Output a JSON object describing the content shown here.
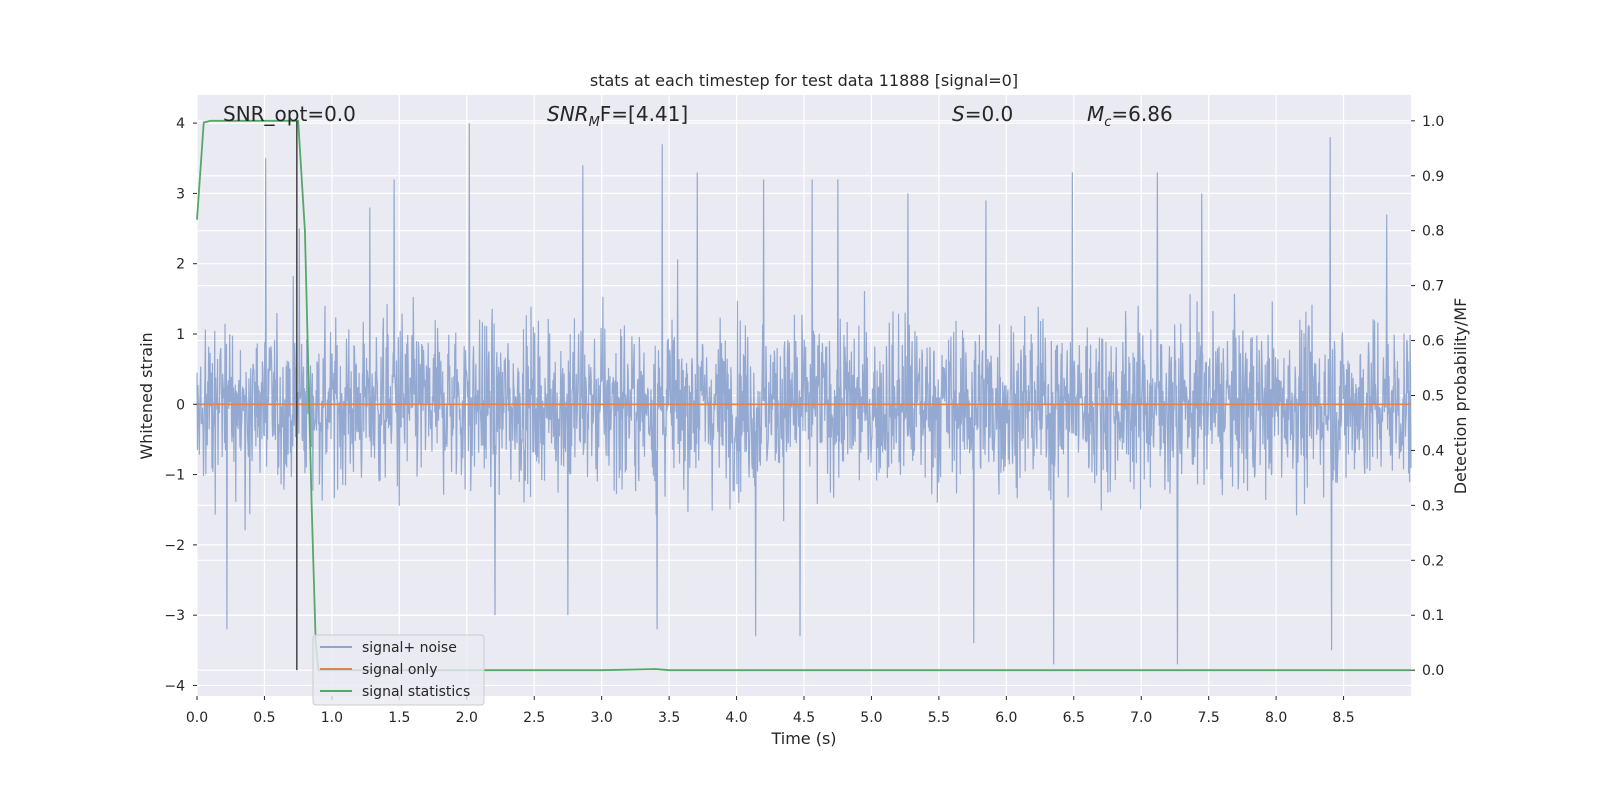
{
  "chart_data": {
    "type": "line",
    "title": "stats at each timestep for test data 11888 [signal=0]",
    "xlabel": "Time (s)",
    "ylabel": "Whitened strain",
    "y2label": "Detection probability/MF",
    "xlim": [
      0.0,
      9.0
    ],
    "ylim": [
      -4.15,
      4.4
    ],
    "y2lim": [
      -0.047,
      1.047
    ],
    "xticks": [
      "0.0",
      "0.5",
      "1.0",
      "1.5",
      "2.0",
      "2.5",
      "3.0",
      "3.5",
      "4.0",
      "4.5",
      "5.0",
      "5.5",
      "6.0",
      "6.5",
      "7.0",
      "7.5",
      "8.0",
      "8.5"
    ],
    "yticks": [
      "4",
      "3",
      "2",
      "1",
      "0",
      "−1",
      "−2",
      "−3",
      "−4"
    ],
    "y2ticks": [
      "1.0",
      "0.9",
      "0.8",
      "0.7",
      "0.6",
      "0.5",
      "0.4",
      "0.3",
      "0.2",
      "0.1",
      "0.0"
    ],
    "grid": true,
    "legend_position": "lower-left",
    "series": [
      {
        "name": "signal+ noise",
        "color": "#8fa5cf",
        "axis": "left",
        "description_samples": 9000,
        "peak_values": [
          [
            0.51,
            3.5
          ],
          [
            0.76,
            2.5
          ],
          [
            1.28,
            2.8
          ],
          [
            1.46,
            3.2
          ],
          [
            2.02,
            4.0
          ],
          [
            2.86,
            3.4
          ],
          [
            3.45,
            3.7
          ],
          [
            3.71,
            3.3
          ],
          [
            4.2,
            3.2
          ],
          [
            4.56,
            3.2
          ],
          [
            4.75,
            3.2
          ],
          [
            5.27,
            3.0
          ],
          [
            5.85,
            2.9
          ],
          [
            6.49,
            3.3
          ],
          [
            7.12,
            3.3
          ],
          [
            7.45,
            3.0
          ],
          [
            8.4,
            3.8
          ],
          [
            8.82,
            2.7
          ],
          [
            0.22,
            -3.2
          ],
          [
            2.21,
            -3.0
          ],
          [
            2.75,
            -3.0
          ],
          [
            3.41,
            -3.2
          ],
          [
            4.14,
            -3.3
          ],
          [
            4.47,
            -3.3
          ],
          [
            5.76,
            -3.4
          ],
          [
            6.35,
            -3.7
          ],
          [
            7.27,
            -3.7
          ],
          [
            8.41,
            -3.5
          ]
        ]
      },
      {
        "name": "signal only",
        "color": "#dd8452",
        "axis": "left",
        "x": [
          0.0,
          9.0
        ],
        "y": [
          0.0,
          0.0
        ]
      },
      {
        "name": "signal statistics",
        "color": "#55a868",
        "axis": "right",
        "x": [
          0.0,
          0.05,
          0.1,
          0.2,
          0.3,
          0.4,
          0.5,
          0.6,
          0.7,
          0.75,
          0.8,
          0.85,
          0.88,
          0.9,
          1.0,
          2.0,
          3.0,
          3.4,
          3.5,
          4.0,
          5.0,
          6.0,
          7.0,
          8.0,
          9.0
        ],
        "y": [
          0.82,
          0.997,
          1.0,
          1.0,
          1.0,
          1.0,
          1.0,
          1.0,
          1.0,
          1.0,
          0.8,
          0.3,
          0.05,
          0.0,
          0.0,
          0.0,
          0.0,
          0.002,
          0.0,
          0.0,
          0.0,
          0.0,
          0.0,
          0.0,
          0.0
        ]
      }
    ],
    "vline": {
      "x": 0.74,
      "y2_from": 0.0,
      "y2_to": 1.0,
      "color": "#444444"
    },
    "annotations": {
      "snr_opt": "SNR_opt=0.0",
      "snr_mf_main": "SNR",
      "snr_mf_sub": "M",
      "snr_mf_rest": "F=[4.41]",
      "s_symbol": "S",
      "s_value": "=0.0",
      "mc_main": "M",
      "mc_sub": "c",
      "mc_value": "=6.86"
    }
  }
}
